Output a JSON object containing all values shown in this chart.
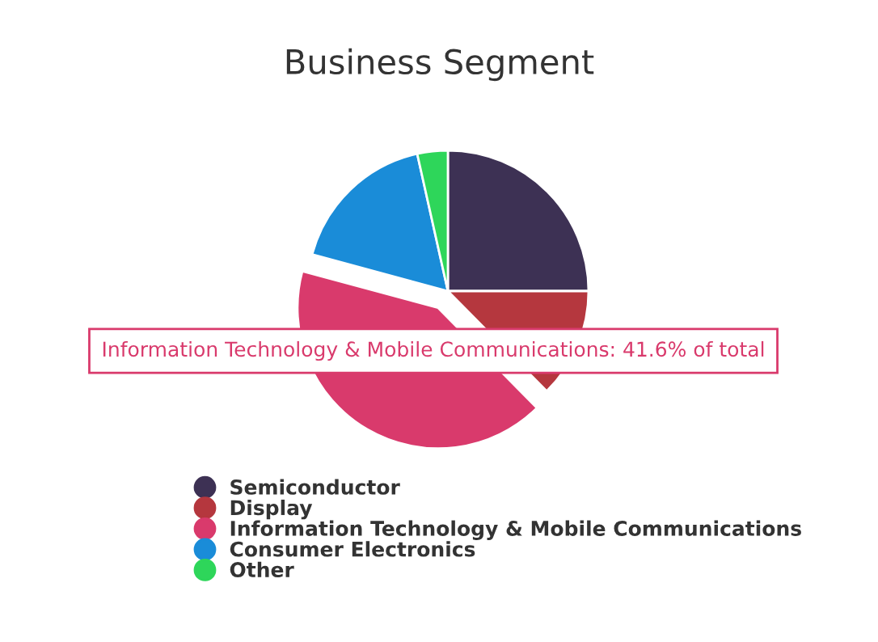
{
  "chart_data": {
    "type": "pie",
    "title": "Business Segment",
    "categories": [
      "Semiconductor",
      "Display",
      "Information Technology & Mobile Communications",
      "Consumer Electronics",
      "Other"
    ],
    "values": [
      25.0,
      12.6,
      41.6,
      17.3,
      3.5
    ],
    "colors": [
      "#3d3154",
      "#b5373e",
      "#d93a6c",
      "#1a8cd8",
      "#2ed65a"
    ],
    "annotations": [
      "Information Technology & Mobile Communications: 41.6% of total"
    ],
    "legend": "bottom"
  }
}
